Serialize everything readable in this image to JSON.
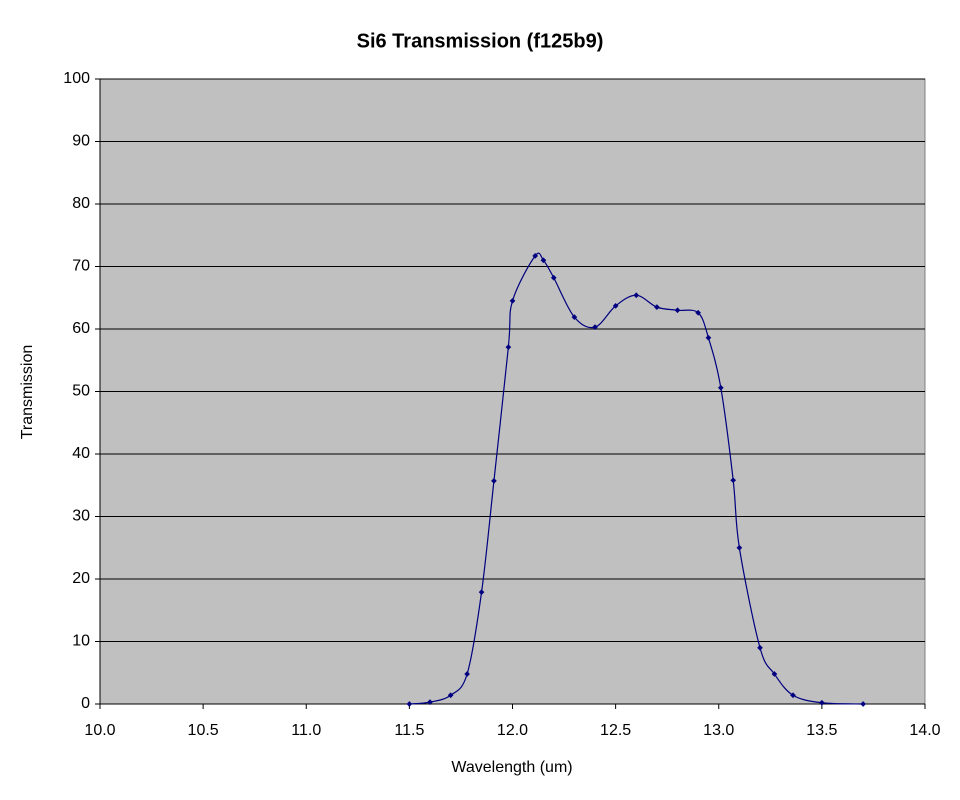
{
  "chart_data": {
    "type": "line",
    "title": "Si6 Transmission (f125b9)",
    "x_label": "Wavelength (um)",
    "y_label": "Transmission",
    "xlim": [
      10,
      14
    ],
    "ylim": [
      0,
      100
    ],
    "xticks": [
      {
        "value": 10,
        "label": "10.0"
      },
      {
        "value": 10.5,
        "label": "10.5"
      },
      {
        "value": 11,
        "label": "11.0"
      },
      {
        "value": 11.5,
        "label": "11.5"
      },
      {
        "value": 12,
        "label": "12.0"
      },
      {
        "value": 12.5,
        "label": "12.5"
      },
      {
        "value": 13,
        "label": "13.0"
      },
      {
        "value": 13.5,
        "label": "13.5"
      },
      {
        "value": 14,
        "label": "14.0"
      }
    ],
    "yticks": [
      0,
      10,
      20,
      30,
      40,
      50,
      60,
      70,
      80,
      90,
      100
    ],
    "grid": true,
    "smooth": true,
    "series": [
      {
        "color": "#000080",
        "x": [
          11.5,
          11.6,
          11.7,
          11.78,
          11.85,
          11.91,
          11.98,
          12.0,
          12.11,
          12.15,
          12.2,
          12.3,
          12.4,
          12.5,
          12.6,
          12.7,
          12.8,
          12.9,
          12.95,
          13.01,
          13.07,
          13.1,
          13.2,
          13.27,
          13.36,
          13.5,
          13.7
        ],
        "values": [
          0,
          0.3,
          1.4,
          4.8,
          17.9,
          35.7,
          57.1,
          64.5,
          71.7,
          71.0,
          68.2,
          61.9,
          60.3,
          63.7,
          65.4,
          63.5,
          63.0,
          62.6,
          58.6,
          50.6,
          35.8,
          25.0,
          9.0,
          4.8,
          1.4,
          0.2,
          0
        ]
      }
    ]
  }
}
